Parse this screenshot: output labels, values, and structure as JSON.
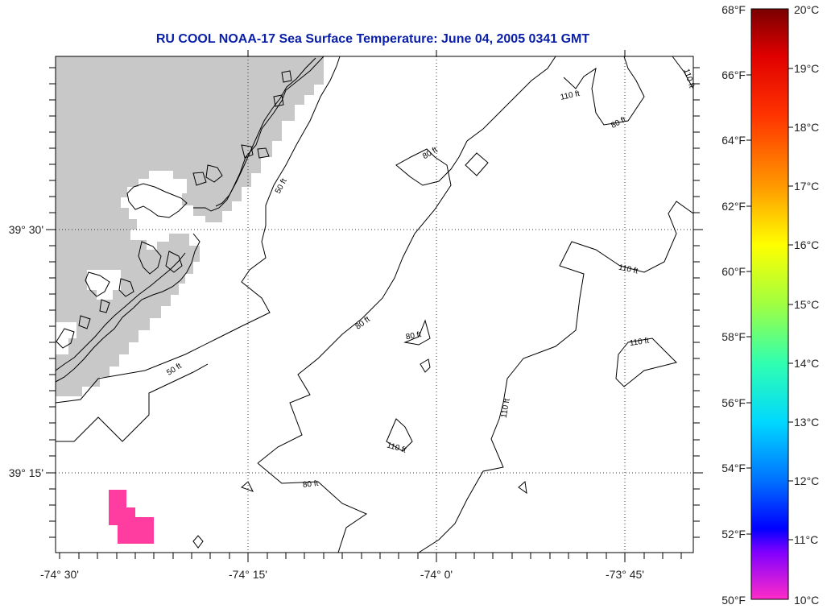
{
  "title": "RU COOL  NOAA-17  Sea Surface Temperature:  June 04, 2005 0341 GMT",
  "map": {
    "lon_labels": [
      "-74° 30'",
      "-74° 15'",
      "-74° 0'",
      "-73° 45'"
    ],
    "lat_labels": [
      "39° 30'",
      "39° 15'"
    ],
    "land_color": "#c8c8c8",
    "sst_patch_color": "#ff3ca0",
    "contour_labels": [
      "50 ft",
      "50 ft",
      "80 ft",
      "80 ft",
      "80 ft",
      "80 ft",
      "80 ft",
      "110 ft",
      "110 ft",
      "110 ft",
      "110 ft",
      "110 ft"
    ]
  },
  "colorbar": {
    "fahrenheit_labels": [
      "68°F",
      "66°F",
      "64°F",
      "62°F",
      "60°F",
      "58°F",
      "56°F",
      "54°F",
      "52°F",
      "50°F"
    ],
    "celsius_labels": [
      "20°C",
      "19°C",
      "18°C",
      "17°C",
      "16°C",
      "15°C",
      "14°C",
      "13°C",
      "12°C",
      "11°C",
      "10°C"
    ],
    "colors": [
      "#7a0000",
      "#ff0000",
      "#ff8000",
      "#ffff00",
      "#80ff00",
      "#00ff80",
      "#00ffff",
      "#0080ff",
      "#0000ff",
      "#8000ff",
      "#ff00ff"
    ]
  }
}
